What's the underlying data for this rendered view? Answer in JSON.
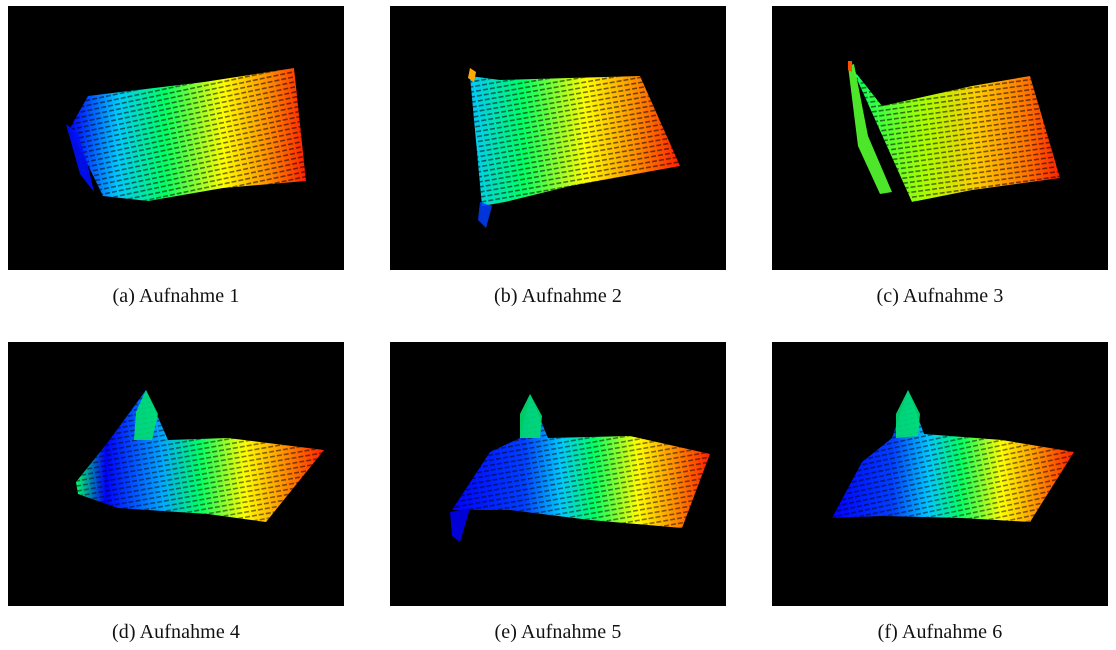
{
  "figure": {
    "panels": [
      {
        "id": "a",
        "caption": "(a) Aufnahme 1",
        "colormap": "jet"
      },
      {
        "id": "b",
        "caption": "(b) Aufnahme 2",
        "colormap": "jet"
      },
      {
        "id": "c",
        "caption": "(c) Aufnahme 3",
        "colormap": "jet"
      },
      {
        "id": "d",
        "caption": "(d) Aufnahme 4",
        "colormap": "jet"
      },
      {
        "id": "e",
        "caption": "(e) Aufnahme 5",
        "colormap": "jet"
      },
      {
        "id": "f",
        "caption": "(f) Aufnahme 6",
        "colormap": "jet"
      }
    ],
    "panel_background": "#000000",
    "colormap_stops": [
      "#0000ff",
      "#00c8ff",
      "#00ff64",
      "#ffff00",
      "#ff8800",
      "#ff2000"
    ]
  }
}
